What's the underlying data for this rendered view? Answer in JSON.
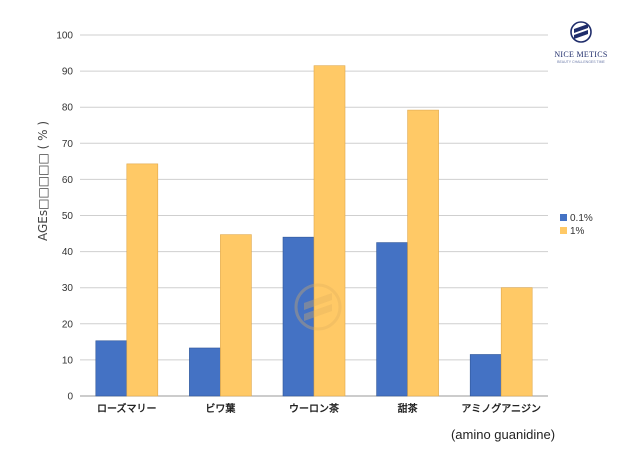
{
  "brand": {
    "name": "NICE METICS",
    "tagline": "BEAUTY CHALLENGES TIME",
    "color": "#1f2d6b"
  },
  "chart_data": {
    "type": "bar",
    "ylabel": "AGEs□□□□□ ( % )",
    "ylim": [
      0,
      100
    ],
    "yticks": [
      0,
      10,
      20,
      30,
      40,
      50,
      60,
      70,
      80,
      90,
      100
    ],
    "grid": true,
    "legend_position": "right",
    "categories": [
      "ローズマリー",
      "ビワ葉",
      "ウーロン茶",
      "甜茶",
      "アミノグアニジン"
    ],
    "category_note": "(amino guanidine)",
    "series": [
      {
        "name": "0.1%",
        "color": "#4472c4",
        "values": [
          15.3,
          13.3,
          44.0,
          42.5,
          11.5
        ]
      },
      {
        "name": "1%",
        "color": "#ffc966",
        "values": [
          64.3,
          44.7,
          91.5,
          79.2,
          30.0
        ]
      }
    ]
  }
}
